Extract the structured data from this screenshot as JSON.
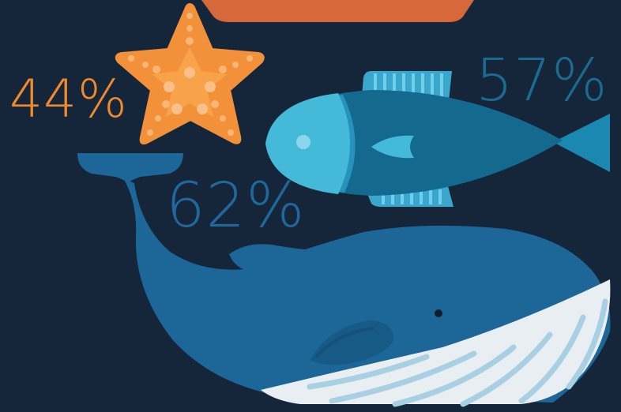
{
  "stats": {
    "starfish": {
      "label": "44%",
      "value": 44,
      "color": "#f08a2c"
    },
    "fish": {
      "label": "57%",
      "value": 57,
      "color": "#1b6a90"
    },
    "whale": {
      "label": "62%",
      "value": 62,
      "color": "#20679a"
    }
  },
  "icons": {
    "banner": "orange-banner-shape",
    "starfish": "starfish-icon",
    "fish": "fish-icon",
    "whale": "whale-icon"
  },
  "colors": {
    "background": "#15253a",
    "banner": "#d6683a",
    "starfish": "#f3913a",
    "fish_body": "#1a6f96",
    "fish_head": "#45b9d8",
    "whale_body": "#1d6698",
    "whale_belly": "#e8eef2"
  }
}
